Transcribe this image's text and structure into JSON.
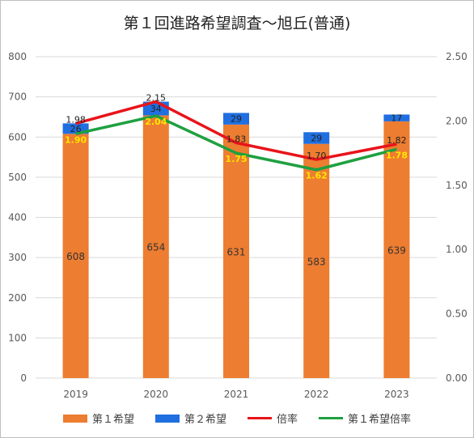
{
  "chart_data": {
    "type": "bar",
    "title": "第１回進路希望調査～旭丘(普通)",
    "categories": [
      "2019",
      "2020",
      "2021",
      "2022",
      "2023"
    ],
    "series": [
      {
        "name": "第１希望",
        "type": "bar",
        "stack": "total",
        "axis": "left",
        "color": "#ED7D31",
        "values": [
          608,
          654,
          631,
          583,
          639
        ],
        "labels": [
          "608",
          "654",
          "631",
          "583",
          "639"
        ]
      },
      {
        "name": "第２希望",
        "type": "bar",
        "stack": "total",
        "axis": "left",
        "color": "#1F6FE0",
        "values": [
          26,
          34,
          29,
          29,
          17
        ],
        "labels": [
          "26",
          "34",
          "29",
          "29",
          "17"
        ]
      },
      {
        "name": "倍率",
        "type": "line",
        "axis": "right",
        "color": "#E8141A",
        "values": [
          1.98,
          2.15,
          1.83,
          1.7,
          1.82
        ],
        "labels": [
          "1.98",
          "2.15",
          "1.83",
          "1.70",
          "1.82"
        ]
      },
      {
        "name": "第１希望倍率",
        "type": "line",
        "axis": "right",
        "color": "#1FA040",
        "values": [
          1.9,
          2.04,
          1.75,
          1.62,
          1.78
        ],
        "labels": [
          "1.90",
          "2.04",
          "1.75",
          "1.62",
          "1.78"
        ]
      }
    ],
    "y_left": {
      "min": 0,
      "max": 800,
      "ticks": [
        "0",
        "100",
        "200",
        "300",
        "400",
        "500",
        "600",
        "700",
        "800"
      ]
    },
    "y_right": {
      "min": 0,
      "max": 2.5,
      "ticks": [
        "0.00",
        "0.50",
        "1.00",
        "1.50",
        "2.00",
        "2.50"
      ]
    },
    "grid": true,
    "legend_position": "bottom"
  }
}
